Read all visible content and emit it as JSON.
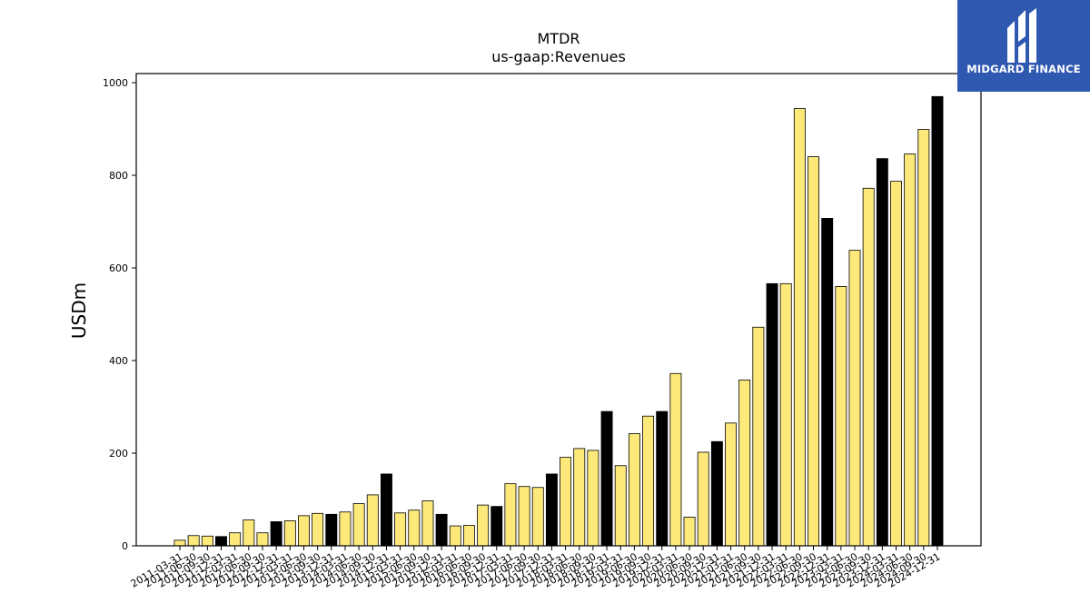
{
  "brand": {
    "name": "MIDGARD FINANCE",
    "logo_icon": "midgard-logo-icon",
    "background": "#2f58b0"
  },
  "chart_data": {
    "type": "bar",
    "title": "MTDR",
    "subtitle": "us-gaap:Revenues",
    "xlabel": "",
    "ylabel": "USDm",
    "ylim": [
      0,
      1000
    ],
    "yticks": [
      0,
      200,
      400,
      600,
      800,
      1000
    ],
    "grid": false,
    "colors": {
      "quarter": "#fde97a",
      "annual": "#000000",
      "edge": "#000000"
    },
    "categories": [
      "2011-03-31",
      "2011-06-30",
      "2011-09-30",
      "2011-12-31",
      "2012-03-31",
      "2012-06-30",
      "2012-09-30",
      "2012-12-31",
      "2013-03-31",
      "2013-06-30",
      "2013-09-30",
      "2013-12-31",
      "2014-03-31",
      "2014-06-30",
      "2014-09-30",
      "2014-12-31",
      "2015-03-31",
      "2015-06-30",
      "2015-09-30",
      "2015-12-31",
      "2016-03-31",
      "2016-06-30",
      "2016-09-30",
      "2016-12-31",
      "2017-03-31",
      "2017-06-30",
      "2017-09-30",
      "2017-12-31",
      "2018-03-31",
      "2018-06-30",
      "2018-09-30",
      "2018-12-31",
      "2019-03-31",
      "2019-06-30",
      "2019-09-30",
      "2019-12-31",
      "2020-03-31",
      "2020-06-30",
      "2020-09-30",
      "2020-12-31",
      "2021-03-31",
      "2021-06-30",
      "2021-09-30",
      "2021-12-31",
      "2022-03-31",
      "2022-06-30",
      "2022-09-30",
      "2022-12-31",
      "2023-03-31",
      "2023-06-30",
      "2023-09-30",
      "2023-12-31",
      "2024-03-31",
      "2024-06-30",
      "2024-09-30",
      "2024-12-31"
    ],
    "values": [
      12,
      22,
      21,
      20,
      28,
      56,
      28,
      52,
      54,
      65,
      70,
      68,
      73,
      91,
      110,
      155,
      71,
      77,
      97,
      68,
      43,
      44,
      88,
      85,
      134,
      128,
      126,
      155,
      191,
      210,
      206,
      290,
      173,
      242,
      280,
      290,
      372,
      62,
      202,
      225,
      265,
      358,
      472,
      566,
      566,
      944,
      840,
      707,
      560,
      638,
      772,
      836,
      787,
      846,
      899,
      970
    ],
    "annual_flags": [
      false,
      false,
      false,
      true,
      false,
      false,
      false,
      true,
      false,
      false,
      false,
      true,
      false,
      false,
      false,
      true,
      false,
      false,
      false,
      true,
      false,
      false,
      false,
      true,
      false,
      false,
      false,
      true,
      false,
      false,
      false,
      true,
      false,
      false,
      false,
      true,
      false,
      false,
      false,
      true,
      false,
      false,
      false,
      true,
      false,
      false,
      false,
      true,
      false,
      false,
      false,
      true,
      false,
      false,
      false,
      true
    ]
  }
}
